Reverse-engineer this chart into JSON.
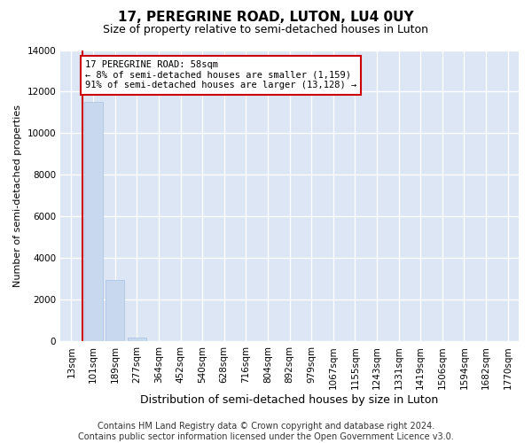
{
  "title": "17, PEREGRINE ROAD, LUTON, LU4 0UY",
  "subtitle": "Size of property relative to semi-detached houses in Luton",
  "xlabel": "Distribution of semi-detached houses by size in Luton",
  "ylabel": "Number of semi-detached properties",
  "categories": [
    "13sqm",
    "101sqm",
    "189sqm",
    "277sqm",
    "364sqm",
    "452sqm",
    "540sqm",
    "628sqm",
    "716sqm",
    "804sqm",
    "892sqm",
    "979sqm",
    "1067sqm",
    "1155sqm",
    "1243sqm",
    "1331sqm",
    "1419sqm",
    "1506sqm",
    "1594sqm",
    "1682sqm",
    "1770sqm"
  ],
  "values": [
    0,
    11500,
    2950,
    200,
    0,
    0,
    0,
    0,
    0,
    0,
    0,
    0,
    0,
    0,
    0,
    0,
    0,
    0,
    0,
    0,
    0
  ],
  "bar_color": "#c8d9ef",
  "bar_edge_color": "#a8c0e0",
  "vline_x_pos": 0.5,
  "vline_color": "#cc0000",
  "annotation_text": "17 PEREGRINE ROAD: 58sqm\n← 8% of semi-detached houses are smaller (1,159)\n91% of semi-detached houses are larger (13,128) →",
  "ylim_max": 14000,
  "yticks": [
    0,
    2000,
    4000,
    6000,
    8000,
    10000,
    12000,
    14000
  ],
  "bg_color": "#ffffff",
  "plot_bg_color": "#dce6f5",
  "grid_color": "#ffffff",
  "title_fontsize": 11,
  "subtitle_fontsize": 9,
  "ylabel_fontsize": 8,
  "xlabel_fontsize": 9,
  "tick_fontsize": 7.5,
  "annotation_fontsize": 7.5,
  "footer_fontsize": 7,
  "footer_line1": "Contains HM Land Registry data © Crown copyright and database right 2024.",
  "footer_line2": "Contains public sector information licensed under the Open Government Licence v3.0."
}
